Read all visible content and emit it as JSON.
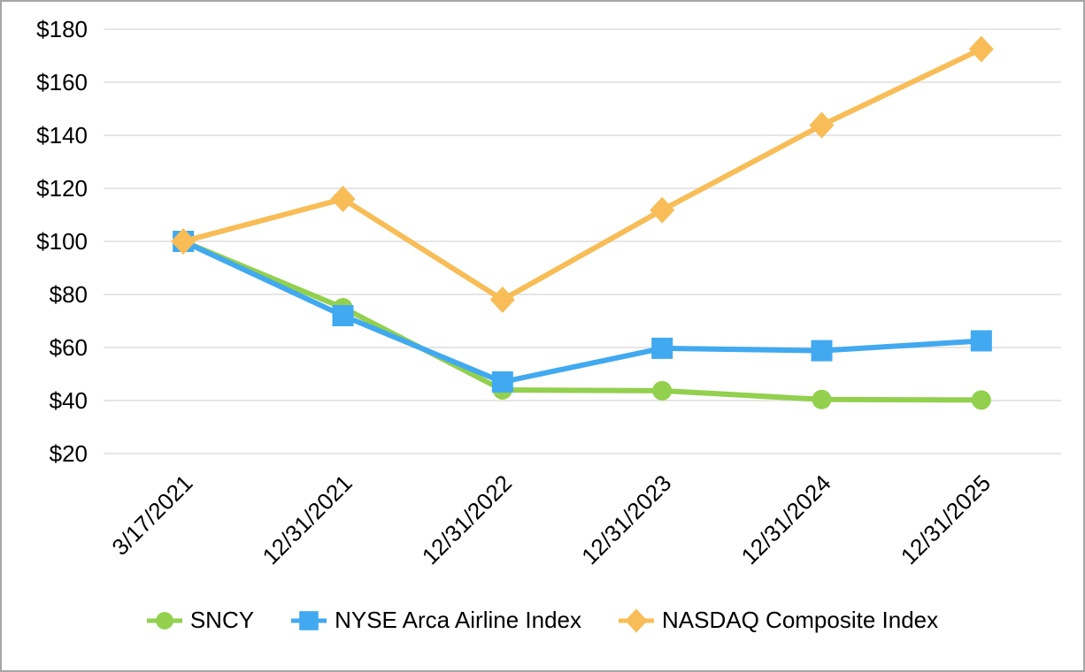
{
  "chart_data": {
    "type": "line",
    "title": "",
    "xlabel": "",
    "ylabel": "",
    "x_labels": [
      "3/17/2021",
      "12/31/2021",
      "12/31/2022",
      "12/31/2023",
      "12/31/2024",
      "12/31/2025"
    ],
    "y_axis": {
      "min": 20,
      "max": 180,
      "step": 20,
      "prefix": "$"
    },
    "y_tick_labels": [
      "$180",
      "$160",
      "$140",
      "$120",
      "$100",
      "$80",
      "$60",
      "$40",
      "$20"
    ],
    "ylim": [
      20,
      180
    ],
    "grid": true,
    "grid_color": "#e6e6e6",
    "legend_position": "bottom",
    "series": [
      {
        "name": "SNCY",
        "marker": "circle",
        "color": "#92d04e",
        "values": [
          100,
          75,
          44,
          43.7,
          40.4,
          40.2
        ]
      },
      {
        "name": "NYSE Arca Airline Index",
        "marker": "square",
        "color": "#41a9f0",
        "values": [
          100,
          72,
          47,
          59.7,
          58.8,
          62.5
        ]
      },
      {
        "name": "NASDAQ Composite Index",
        "marker": "diamond",
        "color": "#f8bd57",
        "values": [
          100,
          116,
          78,
          111.8,
          143.8,
          172.5
        ]
      }
    ]
  }
}
